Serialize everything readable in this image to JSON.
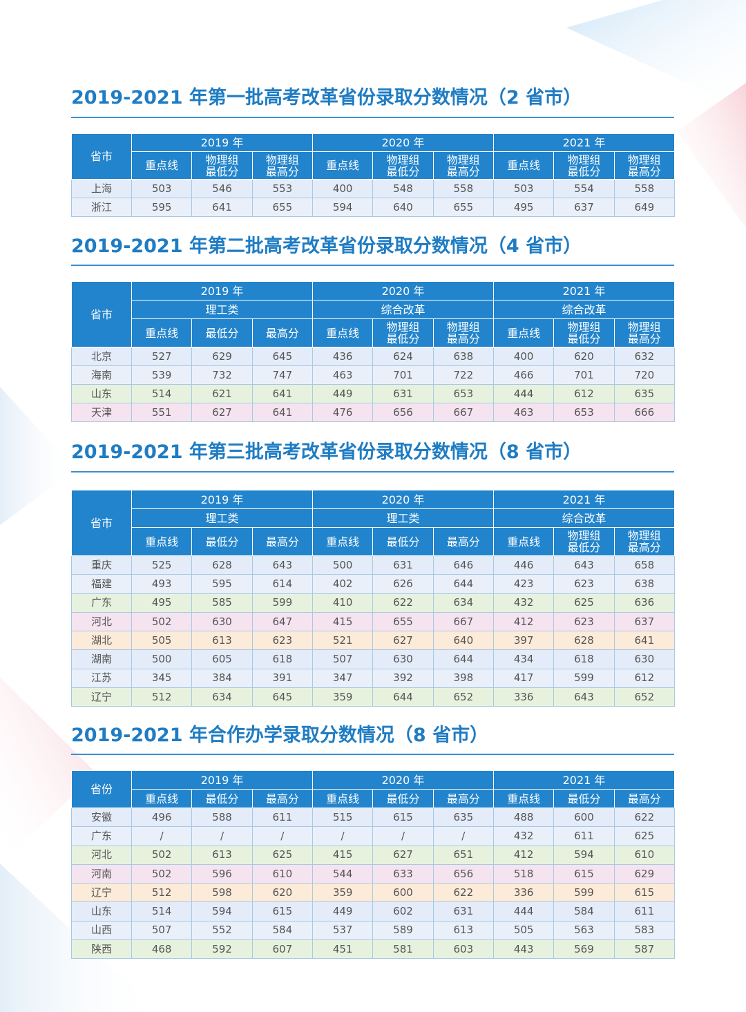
{
  "tables": [
    {
      "title": "2019-2021 年第一批高考改革省份录取分数情况（2 省市）",
      "corner": "省市",
      "years": [
        "2019 年",
        "2020 年",
        "2021 年"
      ],
      "groups": null,
      "columns": [
        [
          "重点线",
          "物理组\n最低分",
          "物理组\n最高分"
        ],
        [
          "重点线",
          "物理组\n最低分",
          "物理组\n最高分"
        ],
        [
          "重点线",
          "物理组\n最低分",
          "物理组\n最高分"
        ]
      ],
      "rows": [
        {
          "name": "上海",
          "values": [
            503,
            546,
            553,
            400,
            548,
            558,
            503,
            554,
            558
          ]
        },
        {
          "name": "浙江",
          "values": [
            595,
            641,
            655,
            594,
            640,
            655,
            495,
            637,
            649
          ]
        }
      ]
    },
    {
      "title": "2019-2021 年第二批高考改革省份录取分数情况（4 省市）",
      "corner": "省市",
      "years": [
        "2019 年",
        "2020 年",
        "2021 年"
      ],
      "groups": [
        "理工类",
        "综合改革",
        "综合改革"
      ],
      "columns": [
        [
          "重点线",
          "最低分",
          "最高分"
        ],
        [
          "重点线",
          "物理组\n最低分",
          "物理组\n最高分"
        ],
        [
          "重点线",
          "物理组\n最低分",
          "物理组\n最高分"
        ]
      ],
      "rows": [
        {
          "name": "北京",
          "values": [
            527,
            629,
            645,
            436,
            624,
            638,
            400,
            620,
            632
          ]
        },
        {
          "name": "海南",
          "values": [
            539,
            732,
            747,
            463,
            701,
            722,
            466,
            701,
            720
          ]
        },
        {
          "name": "山东",
          "values": [
            514,
            621,
            641,
            449,
            631,
            653,
            444,
            612,
            635
          ]
        },
        {
          "name": "天津",
          "values": [
            551,
            627,
            641,
            476,
            656,
            667,
            463,
            653,
            666
          ]
        }
      ]
    },
    {
      "title": "2019-2021 年第三批高考改革省份录取分数情况（8 省市）",
      "corner": "省市",
      "years": [
        "2019 年",
        "2020 年",
        "2021 年"
      ],
      "groups": [
        "理工类",
        "理工类",
        "综合改革"
      ],
      "columns": [
        [
          "重点线",
          "最低分",
          "最高分"
        ],
        [
          "重点线",
          "最低分",
          "最高分"
        ],
        [
          "重点线",
          "物理组\n最低分",
          "物理组\n最高分"
        ]
      ],
      "rows": [
        {
          "name": "重庆",
          "values": [
            525,
            628,
            643,
            500,
            631,
            646,
            446,
            643,
            658
          ]
        },
        {
          "name": "福建",
          "values": [
            493,
            595,
            614,
            402,
            626,
            644,
            423,
            623,
            638
          ]
        },
        {
          "name": "广东",
          "values": [
            495,
            585,
            599,
            410,
            622,
            634,
            432,
            625,
            636
          ]
        },
        {
          "name": "河北",
          "values": [
            502,
            630,
            647,
            415,
            655,
            667,
            412,
            623,
            637
          ]
        },
        {
          "name": "湖北",
          "values": [
            505,
            613,
            623,
            521,
            627,
            640,
            397,
            628,
            641
          ]
        },
        {
          "name": "湖南",
          "values": [
            500,
            605,
            618,
            507,
            630,
            644,
            434,
            618,
            630
          ]
        },
        {
          "name": "江苏",
          "values": [
            345,
            384,
            391,
            347,
            392,
            398,
            417,
            599,
            612
          ]
        },
        {
          "name": "辽宁",
          "values": [
            512,
            634,
            645,
            359,
            644,
            652,
            336,
            643,
            652
          ]
        }
      ]
    },
    {
      "title": "2019-2021 年合作办学录取分数情况（8 省市）",
      "corner": "省份",
      "years": [
        "2019 年",
        "2020 年",
        "2021 年"
      ],
      "groups": null,
      "columns": [
        [
          "重点线",
          "最低分",
          "最高分"
        ],
        [
          "重点线",
          "最低分",
          "最高分"
        ],
        [
          "重点线",
          "最低分",
          "最高分"
        ]
      ],
      "rows": [
        {
          "name": "安徽",
          "values": [
            496,
            588,
            611,
            515,
            615,
            635,
            488,
            600,
            622
          ]
        },
        {
          "name": "广东",
          "values": [
            "/",
            "/",
            "/",
            "/",
            "/",
            "/",
            432,
            611,
            625
          ]
        },
        {
          "name": "河北",
          "values": [
            502,
            613,
            625,
            415,
            627,
            651,
            412,
            594,
            610
          ]
        },
        {
          "name": "河南",
          "values": [
            502,
            596,
            610,
            544,
            633,
            656,
            518,
            615,
            629
          ]
        },
        {
          "name": "辽宁",
          "values": [
            512,
            598,
            620,
            359,
            600,
            622,
            336,
            599,
            615
          ]
        },
        {
          "name": "山东",
          "values": [
            514,
            594,
            615,
            449,
            602,
            631,
            444,
            584,
            611
          ]
        },
        {
          "name": "山西",
          "values": [
            507,
            552,
            584,
            537,
            589,
            613,
            505,
            563,
            583
          ]
        },
        {
          "name": "陕西",
          "values": [
            468,
            592,
            607,
            451,
            581,
            603,
            443,
            569,
            587
          ]
        }
      ]
    }
  ]
}
